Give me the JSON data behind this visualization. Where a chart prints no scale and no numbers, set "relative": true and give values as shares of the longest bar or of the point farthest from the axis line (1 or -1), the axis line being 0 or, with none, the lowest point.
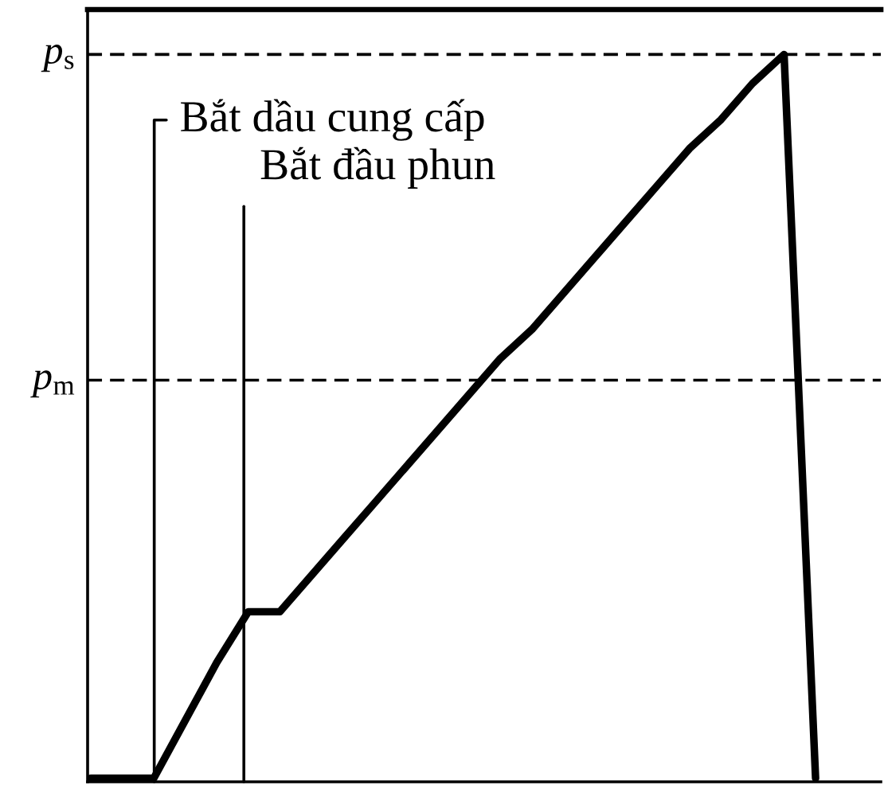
{
  "chart_data": {
    "type": "line",
    "relative": true,
    "line_style": "solid",
    "categories": [
      null,
      null,
      null,
      null,
      null,
      null,
      null,
      null,
      null,
      null,
      null,
      null,
      null,
      null,
      null,
      null,
      null,
      null,
      null,
      null,
      null,
      null,
      null,
      null
    ],
    "series": [
      {
        "color": "#000000",
        "values": [
          0,
          0,
          0,
          0.08,
          0.16,
          0.23,
          0.23,
          0.28,
          0.33,
          0.38,
          0.43,
          0.48,
          0.53,
          0.58,
          0.62,
          0.67,
          0.72,
          0.77,
          0.82,
          0.87,
          0.91,
          0.96,
          1,
          0
        ]
      }
    ],
    "ref_lines": [
      {
        "axis": "y",
        "value": 1,
        "label": "p$_{s}$",
        "line_style": "dashed",
        "color": "#000000"
      },
      {
        "axis": "y",
        "value": 0.55,
        "label": "p$_{m}$",
        "line_style": "dashed",
        "color": "#000000"
      }
    ],
    "annotations": [
      "Bắt dầu cung cấp",
      "Bắt đầu phun"
    ]
  }
}
